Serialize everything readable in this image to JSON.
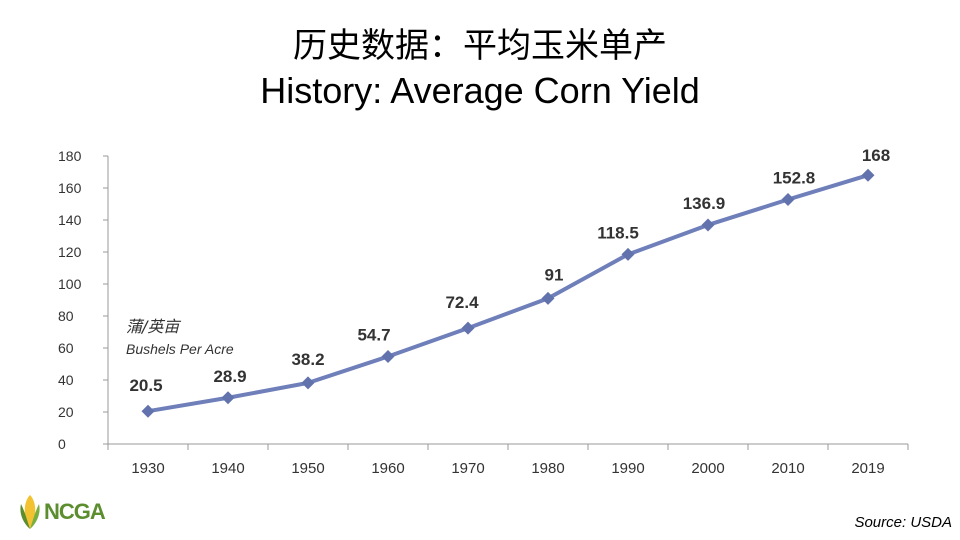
{
  "header": {
    "title_cn": "历史数据：平均玉米单产",
    "title_en": "History: Average Corn Yield"
  },
  "chart_data": {
    "type": "line",
    "categories": [
      "1930",
      "1940",
      "1950",
      "1960",
      "1970",
      "1980",
      "1990",
      "2000",
      "2010",
      "2019"
    ],
    "series": [
      {
        "values": [
          20.5,
          28.9,
          38.2,
          54.7,
          72.4,
          91,
          118.5,
          136.9,
          152.8,
          168
        ]
      }
    ],
    "data_labels": [
      "20.5",
      "28.9",
      "38.2",
      "54.7",
      "72.4",
      "91",
      "118.5",
      "136.9",
      "152.8",
      "168"
    ],
    "yticks": [
      0,
      20,
      40,
      60,
      80,
      100,
      120,
      140,
      160,
      180
    ],
    "ylim": [
      0,
      180
    ],
    "unit_cn": "蒲/英亩",
    "unit_en": "Bushels Per Acre",
    "grid": false,
    "line_color": "#6f7fba",
    "marker_color": "#6272ad"
  },
  "footer": {
    "logo_text": "NCGA",
    "source": "Source: USDA"
  }
}
